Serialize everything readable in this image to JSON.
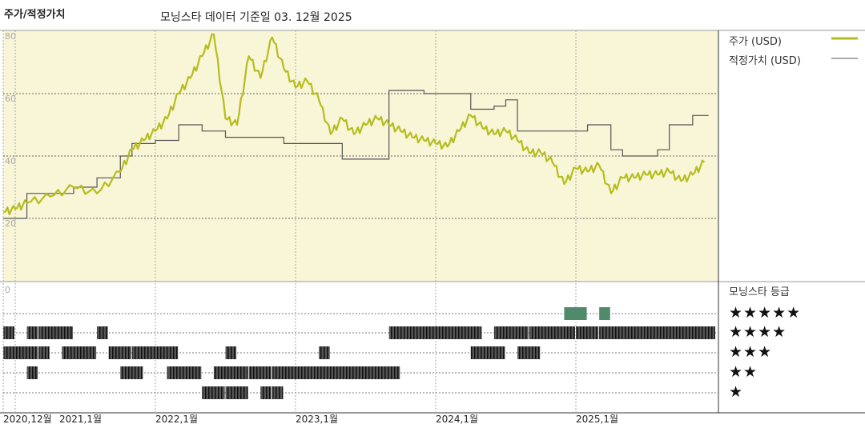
{
  "header": {
    "title": "주가/적정가치",
    "subtitle": "모닝스타 데이터 기준일 03. 12월 2025"
  },
  "legend": {
    "price_label": "주가 (USD)",
    "fair_value_label": "적정가치 (USD)",
    "rating_title": "모닝스타 등급",
    "stars": [
      "★★★★★",
      "★★★★",
      "★★★",
      "★★",
      "★"
    ]
  },
  "colors": {
    "price": "#b5bd1e",
    "fair_value": "#555555",
    "plot_bg": "#f9f5d7",
    "rating_bar": "#3a3a3a",
    "rating_5": "#4f8a6a"
  },
  "chart_data": {
    "type": "line",
    "title": "주가/적정가치",
    "ylim": [
      0,
      80
    ],
    "y_ticks": [
      "80",
      "60",
      "40",
      "20",
      "0"
    ],
    "x_ticks": [
      "2020,12월",
      "2021,1월",
      "2022,1월",
      "2023,1월",
      "2024,1월",
      "2025,1월"
    ],
    "grid": true,
    "series": [
      {
        "name": "주가 (USD)",
        "points": [
          [
            "2020-12",
            22
          ],
          [
            "2021-01",
            23
          ],
          [
            "2021-02",
            25
          ],
          [
            "2021-04",
            27
          ],
          [
            "2021-06",
            30
          ],
          [
            "2021-08",
            28
          ],
          [
            "2021-10",
            35
          ],
          [
            "2021-11",
            42
          ],
          [
            "2021-12",
            45
          ],
          [
            "2022-01",
            48
          ],
          [
            "2022-02",
            52
          ],
          [
            "2022-03",
            60
          ],
          [
            "2022-04",
            65
          ],
          [
            "2022-05",
            72
          ],
          [
            "2022-06",
            79
          ],
          [
            "2022-07",
            52
          ],
          [
            "2022-08",
            50
          ],
          [
            "2022-09",
            72
          ],
          [
            "2022-10",
            65
          ],
          [
            "2022-11",
            78
          ],
          [
            "2022-12",
            68
          ],
          [
            "2023-01",
            62
          ],
          [
            "2023-02",
            64
          ],
          [
            "2023-03",
            58
          ],
          [
            "2023-04",
            47
          ],
          [
            "2023-05",
            52
          ],
          [
            "2023-06",
            47
          ],
          [
            "2023-07",
            50
          ],
          [
            "2023-08",
            52
          ],
          [
            "2023-09",
            50
          ],
          [
            "2023-10",
            48
          ],
          [
            "2023-11",
            46
          ],
          [
            "2023-12",
            45
          ],
          [
            "2024-01",
            44
          ],
          [
            "2024-02",
            43
          ],
          [
            "2024-03",
            48
          ],
          [
            "2024-04",
            53
          ],
          [
            "2024-05",
            49
          ],
          [
            "2024-06",
            47
          ],
          [
            "2024-07",
            48
          ],
          [
            "2024-08",
            45
          ],
          [
            "2024-09",
            41
          ],
          [
            "2024-10",
            41
          ],
          [
            "2024-11",
            38
          ],
          [
            "2024-12",
            31
          ],
          [
            "2025-01",
            36
          ],
          [
            "2025-02",
            35
          ],
          [
            "2025-03",
            37
          ],
          [
            "2025-04",
            28
          ],
          [
            "2025-05",
            33
          ],
          [
            "2025-06",
            33
          ],
          [
            "2025-07",
            34
          ],
          [
            "2025-08",
            34
          ],
          [
            "2025-09",
            35
          ],
          [
            "2025-10",
            32
          ],
          [
            "2025-11",
            34
          ],
          [
            "2025-12",
            38
          ]
        ]
      },
      {
        "name": "적정가치 (USD)",
        "step": true,
        "points": [
          [
            "2020-12",
            20
          ],
          [
            "2021-02",
            28
          ],
          [
            "2021-06",
            30
          ],
          [
            "2021-08",
            33
          ],
          [
            "2021-10",
            40
          ],
          [
            "2021-11",
            44
          ],
          [
            "2022-01",
            45
          ],
          [
            "2022-03",
            50
          ],
          [
            "2022-05",
            48
          ],
          [
            "2022-07",
            46
          ],
          [
            "2022-12",
            44
          ],
          [
            "2023-05",
            39
          ],
          [
            "2023-09",
            61
          ],
          [
            "2023-12",
            60
          ],
          [
            "2024-04",
            55
          ],
          [
            "2024-06",
            56
          ],
          [
            "2024-07",
            58
          ],
          [
            "2024-08",
            48
          ],
          [
            "2025-02",
            50
          ],
          [
            "2025-04",
            42
          ],
          [
            "2025-05",
            40
          ],
          [
            "2025-08",
            42
          ],
          [
            "2025-09",
            50
          ],
          [
            "2025-11",
            53
          ],
          [
            "2025-12",
            53
          ]
        ]
      }
    ],
    "ratings": [
      {
        "stars": 5,
        "ranges": [
          [
            "2024-12",
            "2025-01"
          ],
          [
            "2025-03",
            "2025-03"
          ]
        ]
      },
      {
        "stars": 4,
        "ranges": [
          [
            "2020-12",
            "2020-12"
          ],
          [
            "2021-02",
            "2021-02"
          ],
          [
            "2021-03",
            "2021-05"
          ],
          [
            "2021-08",
            "2021-08"
          ],
          [
            "2023-09",
            "2024-04"
          ],
          [
            "2024-06",
            "2024-08"
          ],
          [
            "2024-09",
            "2024-12"
          ],
          [
            "2025-01",
            "2025-02"
          ],
          [
            "2025-03",
            "2025-12"
          ]
        ]
      },
      {
        "stars": 3,
        "ranges": [
          [
            "2020-12",
            "2021-02"
          ],
          [
            "2021-03",
            "2021-03"
          ],
          [
            "2021-05",
            "2021-07"
          ],
          [
            "2021-09",
            "2021-10"
          ],
          [
            "2021-11",
            "2022-02"
          ],
          [
            "2022-07",
            "2022-07"
          ],
          [
            "2023-03",
            "2023-03"
          ],
          [
            "2024-04",
            "2024-06"
          ],
          [
            "2024-08",
            "2024-09"
          ]
        ]
      },
      {
        "stars": 2,
        "ranges": [
          [
            "2021-02",
            "2021-02"
          ],
          [
            "2021-10",
            "2021-11"
          ],
          [
            "2022-02",
            "2022-04"
          ],
          [
            "2022-06",
            "2022-08"
          ],
          [
            "2022-09",
            "2022-10"
          ],
          [
            "2022-11",
            "2023-03"
          ],
          [
            "2023-03",
            "2023-09"
          ]
        ]
      },
      {
        "stars": 1,
        "ranges": [
          [
            "2022-05",
            "2022-06"
          ],
          [
            "2022-07",
            "2022-08"
          ],
          [
            "2022-10",
            "2022-10"
          ],
          [
            "2022-11",
            "2022-11"
          ]
        ]
      }
    ]
  }
}
